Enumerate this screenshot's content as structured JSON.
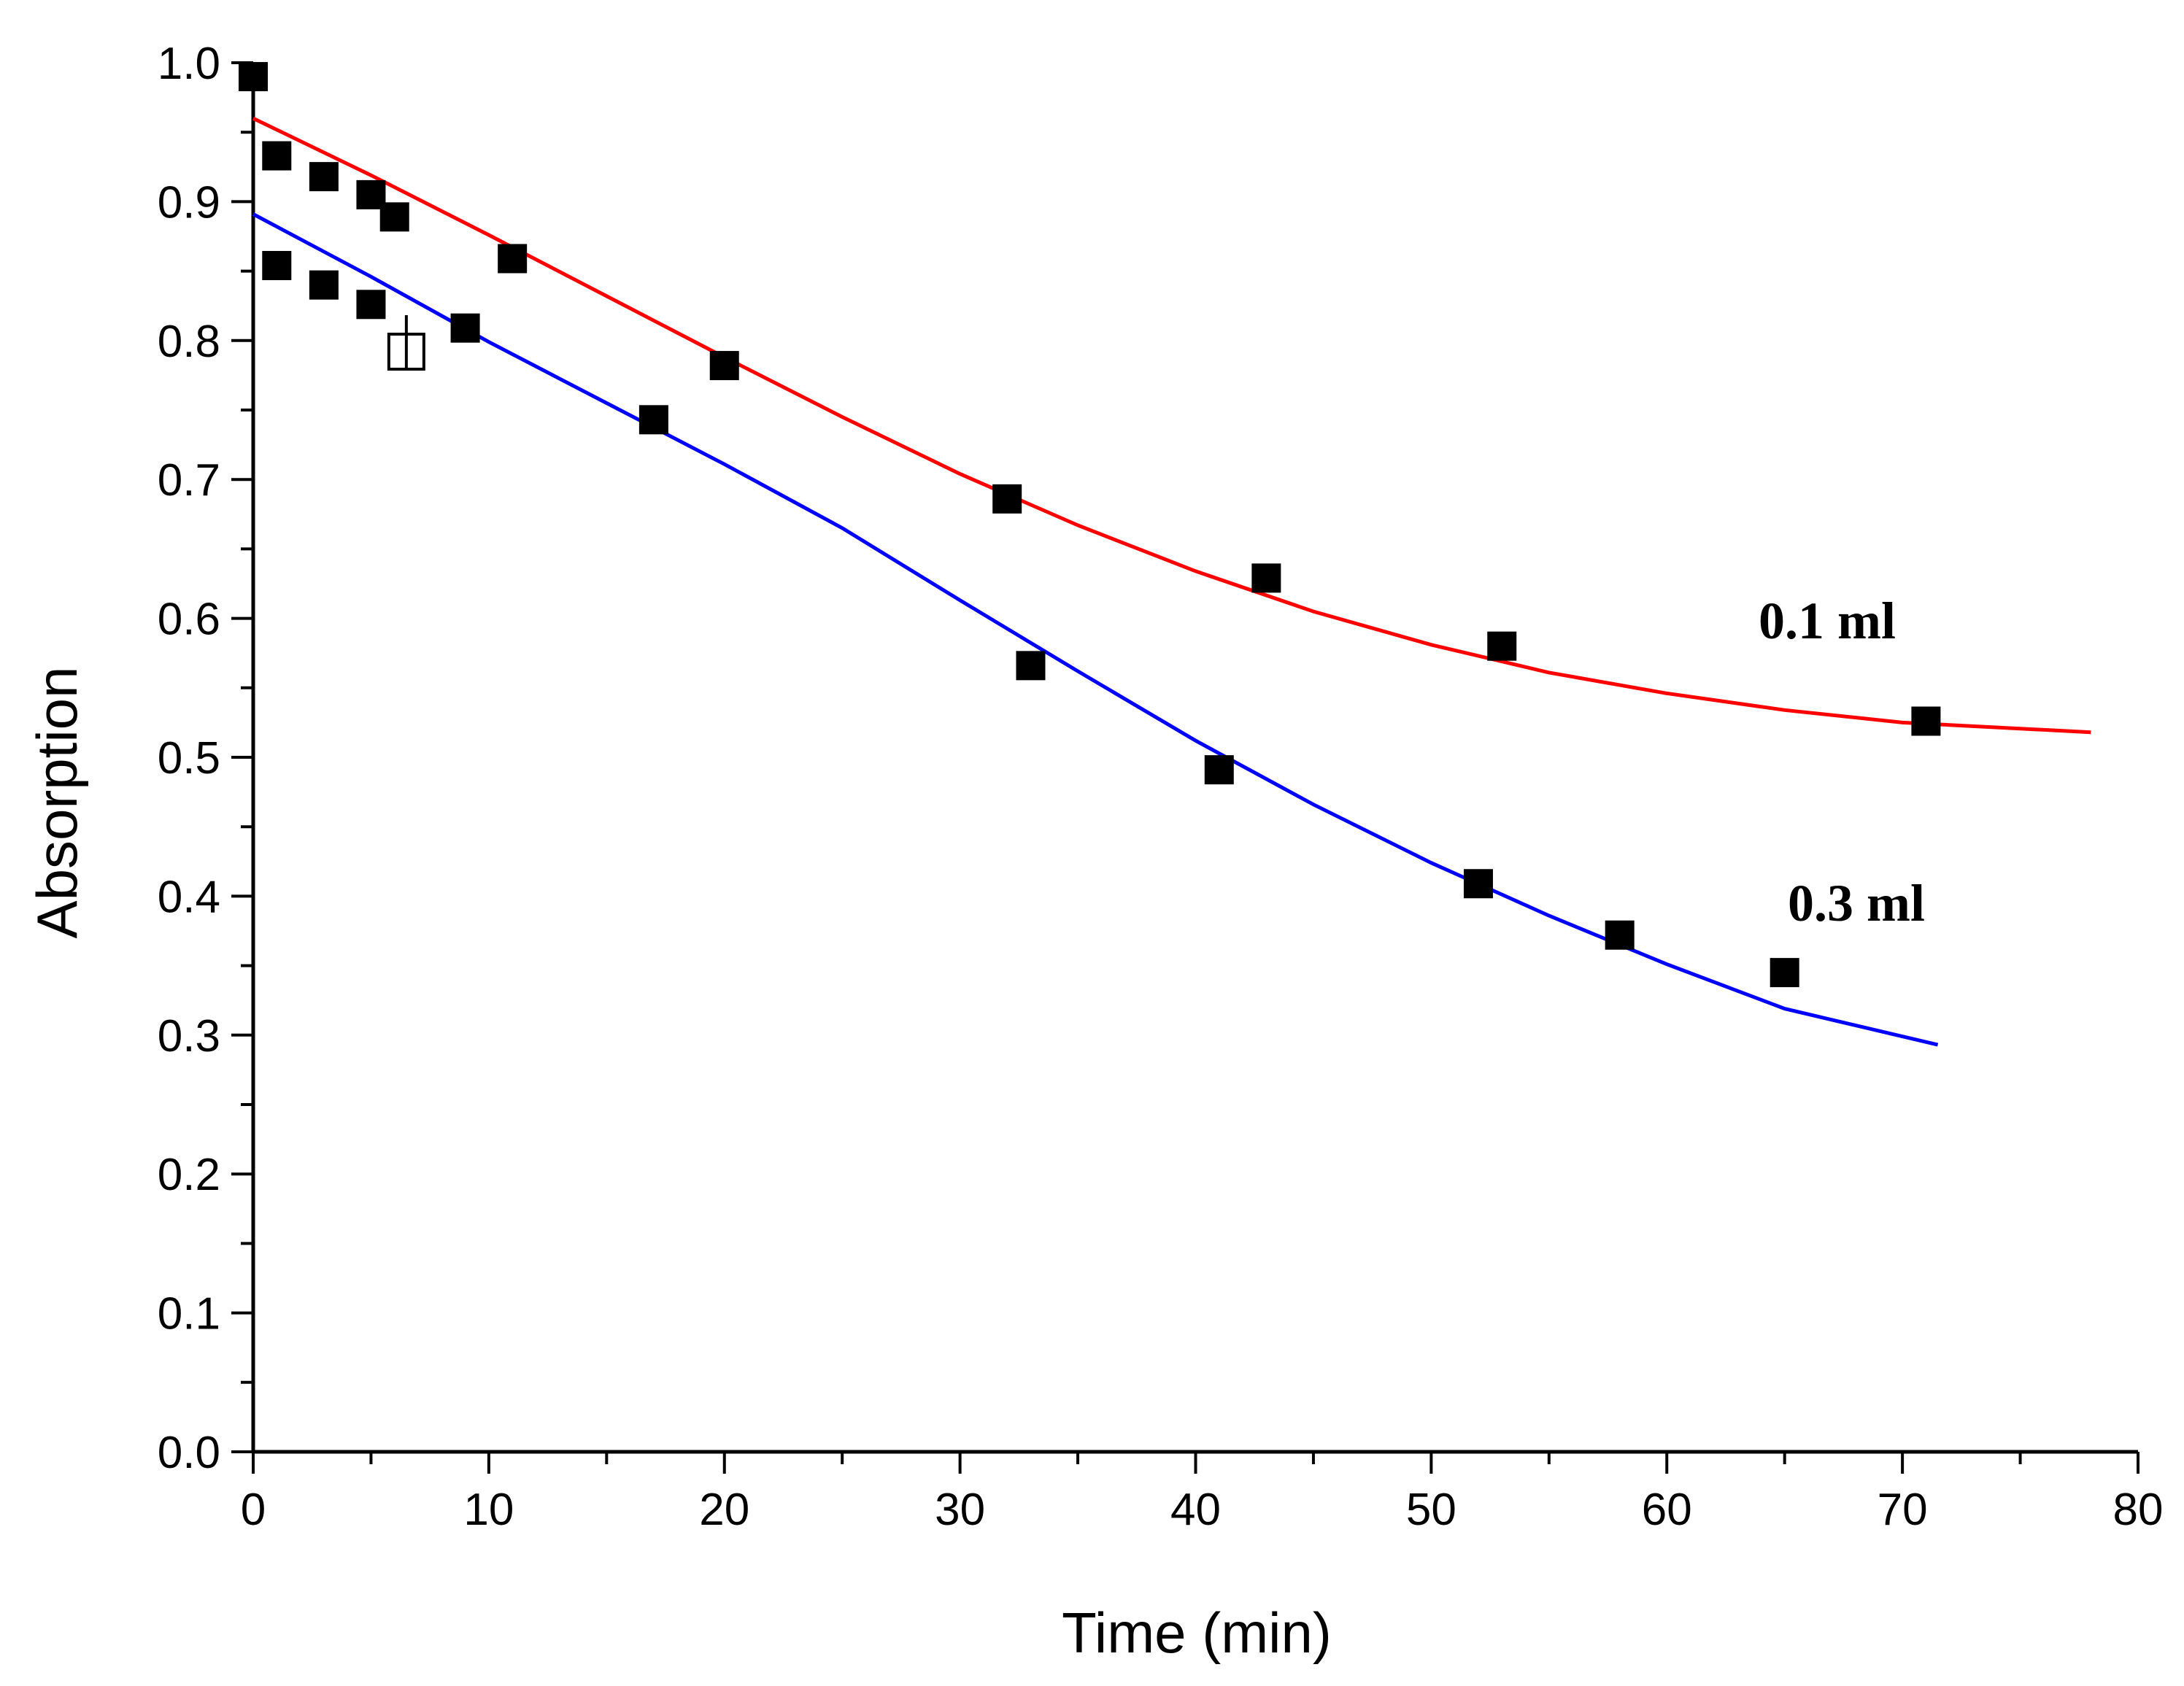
{
  "chart_data": {
    "type": "scatter",
    "title": "",
    "xlabel": "Time (min)",
    "ylabel": "Absorption",
    "xlim": [
      0,
      80
    ],
    "ylim": [
      0.0,
      1.0
    ],
    "xticks": [
      "0",
      "10",
      "20",
      "30",
      "40",
      "50",
      "60",
      "70",
      "80"
    ],
    "yticks": [
      "0.0",
      "0.1",
      "0.2",
      "0.3",
      "0.4",
      "0.5",
      "0.6",
      "0.7",
      "0.8",
      "0.9",
      "1.0"
    ],
    "grid": false,
    "series": [
      {
        "name": "0.1 ml",
        "label": "0.1 ml",
        "color": "#ff0000",
        "points": [
          [
            0,
            0.99
          ],
          [
            1,
            0.933
          ],
          [
            3,
            0.918
          ],
          [
            5,
            0.905
          ],
          [
            6,
            0.889
          ],
          [
            11,
            0.859
          ],
          [
            20,
            0.782
          ],
          [
            32,
            0.686
          ],
          [
            43,
            0.629
          ],
          [
            53,
            0.58
          ],
          [
            71,
            0.526
          ]
        ],
        "fit": [
          [
            0,
            0.96
          ],
          [
            5,
            0.919
          ],
          [
            10,
            0.876
          ],
          [
            15,
            0.832
          ],
          [
            20,
            0.788
          ],
          [
            25,
            0.745
          ],
          [
            30,
            0.704
          ],
          [
            35,
            0.667
          ],
          [
            40,
            0.634
          ],
          [
            45,
            0.605
          ],
          [
            50,
            0.581
          ],
          [
            55,
            0.561
          ],
          [
            60,
            0.546
          ],
          [
            65,
            0.534
          ],
          [
            70,
            0.525
          ],
          [
            78,
            0.518
          ]
        ]
      },
      {
        "name": "0.3 ml",
        "label": "0.3 ml",
        "color": "#0000ff",
        "points": [
          [
            1,
            0.854
          ],
          [
            3,
            0.84
          ],
          [
            5,
            0.826
          ],
          [
            9,
            0.809
          ],
          [
            17,
            0.743
          ],
          [
            33,
            0.566
          ],
          [
            41,
            0.491
          ],
          [
            52,
            0.409
          ],
          [
            58,
            0.372
          ],
          [
            65,
            0.345
          ]
        ],
        "fit": [
          [
            0,
            0.891
          ],
          [
            5,
            0.846
          ],
          [
            10,
            0.799
          ],
          [
            15,
            0.755
          ],
          [
            20,
            0.711
          ],
          [
            25,
            0.665
          ],
          [
            30,
            0.613
          ],
          [
            35,
            0.562
          ],
          [
            40,
            0.512
          ],
          [
            45,
            0.466
          ],
          [
            50,
            0.424
          ],
          [
            55,
            0.386
          ],
          [
            60,
            0.351
          ],
          [
            65,
            0.319
          ],
          [
            71.5,
            0.293
          ]
        ]
      }
    ],
    "open_marker": {
      "x": 6.5,
      "y": 0.792
    }
  }
}
